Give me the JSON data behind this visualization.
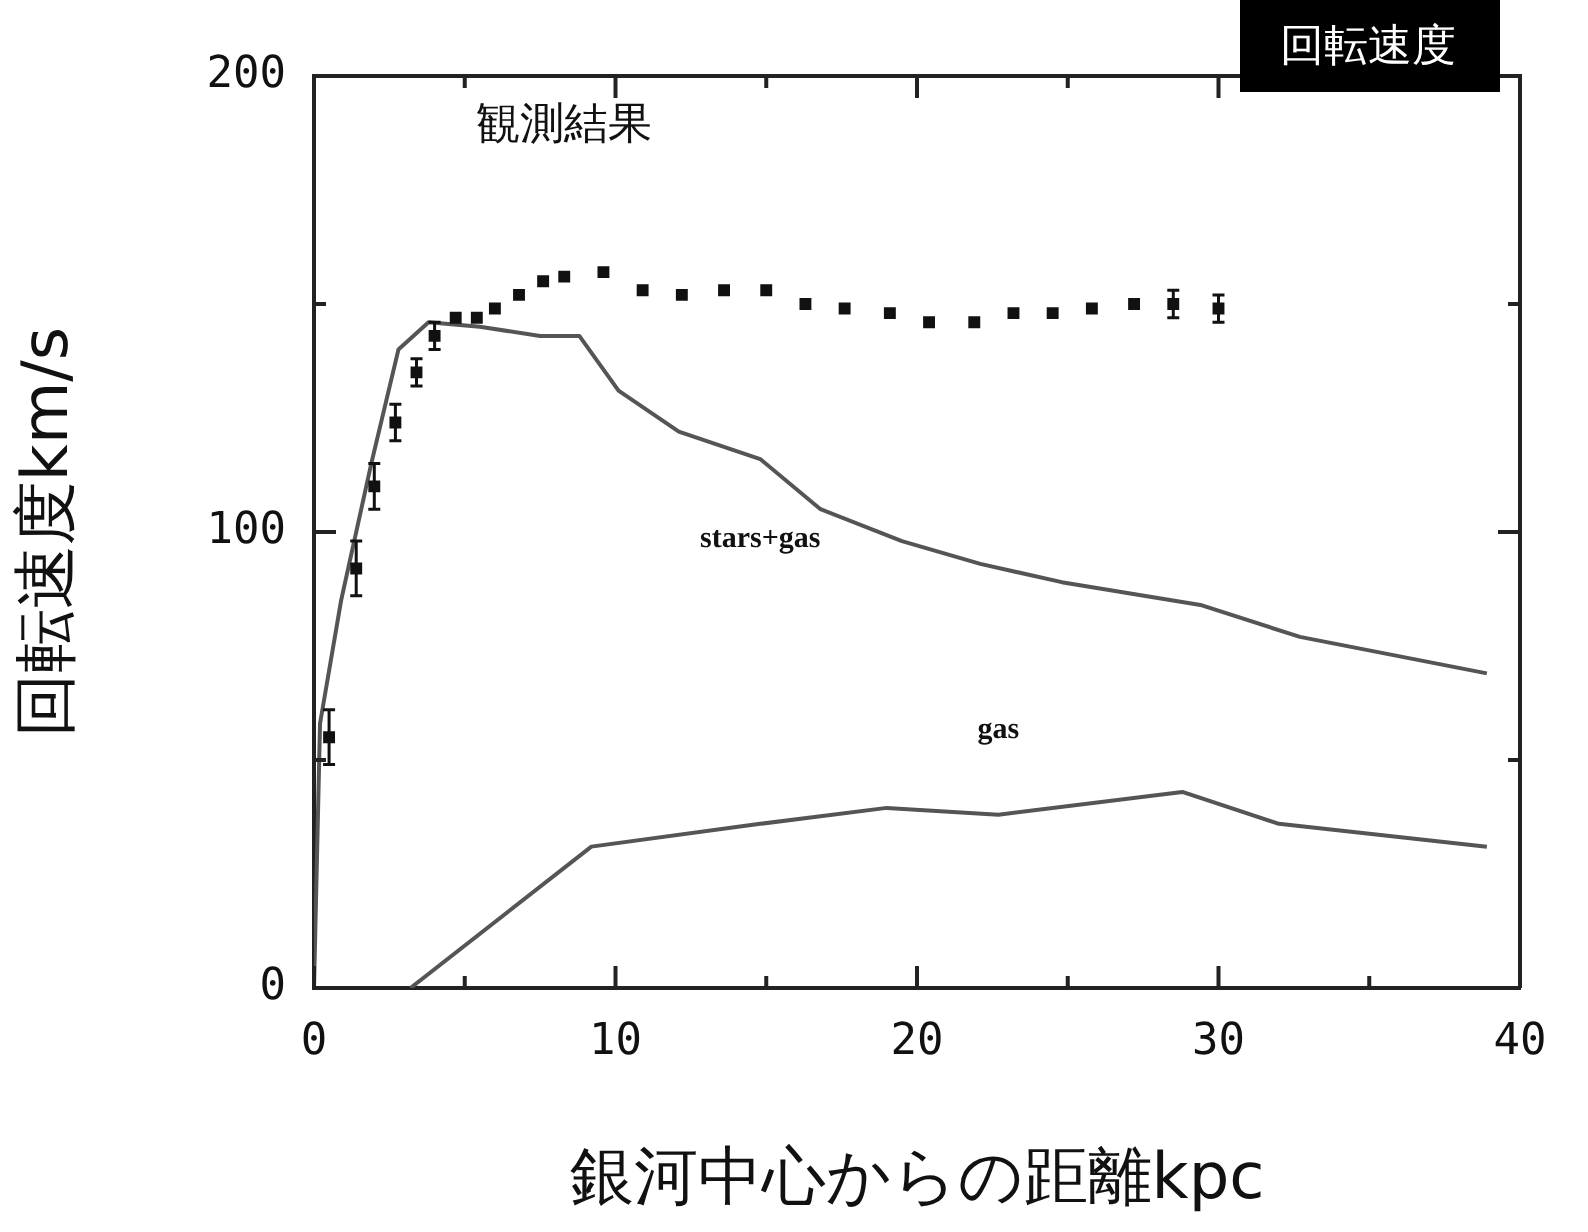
{
  "chart_data": {
    "type": "line",
    "xlabel": "銀河中心からの距離kpc",
    "ylabel": "回転速度km/s",
    "annotations": [
      "回転速度"
    ],
    "xlim": [
      0,
      40
    ],
    "ylim": [
      0,
      200
    ],
    "xticks": [
      0,
      {
        "value": 5,
        "label": null
      },
      10,
      {
        "value": 15,
        "label": null
      },
      20,
      {
        "value": 25,
        "label": null
      },
      30,
      {
        "value": 35,
        "label": null
      },
      40
    ],
    "yticks": [
      0,
      {
        "value": 50,
        "label": null
      },
      100,
      {
        "value": 150,
        "label": null
      },
      200
    ],
    "grid": false,
    "legend": false,
    "series": [
      {
        "name": "観測結果",
        "type": "scatter",
        "color": "#111111",
        "marker": "square",
        "x": [
          0.5,
          1.4,
          2.0,
          2.7,
          3.4,
          4.0,
          4.7,
          5.4,
          6.0,
          6.8,
          7.6,
          8.3,
          9.6,
          10.9,
          12.2,
          13.6,
          15.0,
          16.3,
          17.6,
          19.1,
          20.4,
          21.9,
          23.2,
          24.5,
          25.8,
          27.2,
          28.5,
          30.0
        ],
        "values": [
          55,
          92,
          110,
          124,
          135,
          143,
          147,
          147,
          149,
          152,
          155,
          156,
          157,
          153,
          152,
          153,
          153,
          150,
          149,
          148,
          146,
          146,
          148,
          148,
          149,
          150,
          150,
          149
        ],
        "errors": [
          6,
          6,
          5,
          4,
          3,
          3,
          null,
          null,
          null,
          null,
          null,
          null,
          null,
          null,
          null,
          null,
          null,
          null,
          null,
          null,
          null,
          null,
          null,
          null,
          null,
          null,
          3,
          3
        ]
      },
      {
        "name": "stars+gas",
        "type": "line",
        "color": "#555555",
        "x": [
          0,
          0.2,
          0.9,
          1.9,
          2.8,
          3.8,
          5.5,
          7.5,
          8.8,
          10.1,
          12.1,
          14.8,
          16.8,
          19.5,
          22.1,
          24.8,
          29.4,
          32.7,
          38.9
        ],
        "values": [
          0,
          58,
          85,
          115,
          140,
          146,
          145,
          143,
          143,
          131,
          122,
          116,
          105,
          98,
          93,
          89,
          84,
          77,
          69
        ]
      },
      {
        "name": "gas",
        "type": "line",
        "color": "#555555",
        "x": [
          3.2,
          9.2,
          14.8,
          19,
          22.7,
          28.8,
          32,
          38.9
        ],
        "values": [
          0,
          31,
          36,
          39.5,
          38,
          43,
          36,
          31
        ]
      }
    ]
  }
}
